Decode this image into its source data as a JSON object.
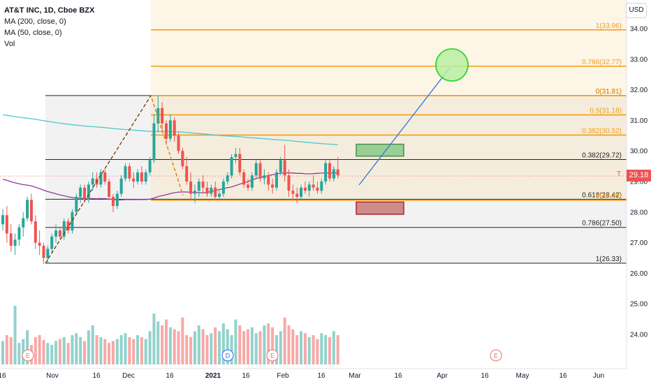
{
  "header": {
    "symbol_line": "AT&T INC, 1D, Cboe BZX",
    "indicators": [
      "MA (200, close, 0)",
      "MA (50, close, 0)",
      "Vol"
    ],
    "currency_button": "USD"
  },
  "last_price": {
    "value": "29.18",
    "symbol_tag": "T",
    "color": "#ef5350"
  },
  "colors": {
    "up": "#26a69a",
    "down": "#ef5350",
    "fib": "#f39c12",
    "ma200": "#4ec8cc",
    "ma50": "#8e3a9a",
    "projection": "#3b7dd8",
    "target": "#00d000"
  },
  "chart_data": {
    "type": "candlestick",
    "y_axis": {
      "min": 23.2,
      "max": 34.9,
      "ticks": [
        "34.00",
        "33.00",
        "32.00",
        "31.00",
        "30.00",
        "29.00",
        "28.00",
        "27.00",
        "26.00",
        "25.00",
        "24.00"
      ]
    },
    "x_axis": {
      "ticks": [
        {
          "label": "16",
          "x": 3
        },
        {
          "label": "Nov",
          "x": 75
        },
        {
          "label": "16",
          "x": 138
        },
        {
          "label": "Dec",
          "x": 184
        },
        {
          "label": "16",
          "x": 243
        },
        {
          "label": "2021",
          "x": 305
        },
        {
          "label": "16",
          "x": 352
        },
        {
          "label": "Feb",
          "x": 405
        },
        {
          "label": "16",
          "x": 460
        },
        {
          "label": "Mar",
          "x": 508
        },
        {
          "label": "16",
          "x": 570
        },
        {
          "label": "Apr",
          "x": 633
        },
        {
          "label": "16",
          "x": 694
        },
        {
          "label": "May",
          "x": 748
        },
        {
          "label": "16",
          "x": 806
        },
        {
          "label": "Jun",
          "x": 857
        }
      ]
    },
    "fib_retracement_1": {
      "levels": [
        {
          "label": "1(33.96)",
          "value": 33.96
        },
        {
          "label": "0.786(32.77)",
          "value": 32.77
        },
        {
          "label": "0(31.81)",
          "value": 31.81
        },
        {
          "label": "0.5(31.18)",
          "value": 31.18
        },
        {
          "label": "0.382(30.52)",
          "value": 30.52
        },
        {
          "label": "0(28.39)",
          "value": 28.39
        }
      ]
    },
    "fib_retracement_2": {
      "levels": [
        {
          "label": "0(31.81)",
          "value": 31.81
        },
        {
          "label": "0.382(29.72)",
          "value": 29.72
        },
        {
          "label": "0.618(28.42)",
          "value": 28.42
        },
        {
          "label": "0.786(27.50)",
          "value": 27.5
        },
        {
          "label": "1(26.33)",
          "value": 26.33
        }
      ]
    },
    "events": [
      {
        "label": "E",
        "x": 40
      },
      {
        "label": "D",
        "x": 326
      },
      {
        "label": "E",
        "x": 390
      },
      {
        "label": "E",
        "x": 710
      }
    ],
    "candles": [
      [
        27.6,
        28.1,
        27.4,
        27.9
      ],
      [
        27.9,
        28.2,
        27.0,
        27.3
      ],
      [
        27.3,
        27.6,
        26.7,
        26.9
      ],
      [
        26.9,
        27.3,
        26.6,
        27.1
      ],
      [
        27.1,
        27.6,
        26.9,
        27.5
      ],
      [
        27.5,
        28.0,
        27.2,
        27.8
      ],
      [
        27.8,
        28.5,
        27.7,
        28.4
      ],
      [
        28.4,
        28.6,
        27.6,
        27.7
      ],
      [
        27.7,
        27.9,
        26.8,
        27.0
      ],
      [
        27.0,
        27.4,
        26.6,
        26.9
      ],
      [
        26.9,
        27.0,
        26.3,
        26.5
      ],
      [
        26.5,
        26.9,
        26.3,
        26.8
      ],
      [
        26.8,
        27.3,
        26.7,
        27.2
      ],
      [
        27.2,
        27.6,
        27.0,
        27.4
      ],
      [
        27.4,
        27.5,
        27.1,
        27.2
      ],
      [
        27.2,
        27.8,
        27.1,
        27.7
      ],
      [
        27.7,
        27.8,
        27.3,
        27.4
      ],
      [
        27.4,
        28.1,
        27.3,
        28.0
      ],
      [
        28.0,
        28.6,
        27.9,
        28.5
      ],
      [
        28.5,
        28.9,
        28.3,
        28.8
      ],
      [
        28.8,
        28.9,
        28.3,
        28.4
      ],
      [
        28.4,
        29.0,
        28.3,
        28.9
      ],
      [
        28.9,
        29.3,
        28.7,
        29.1
      ],
      [
        29.1,
        29.3,
        28.8,
        28.9
      ],
      [
        28.9,
        29.4,
        28.8,
        29.3
      ],
      [
        29.3,
        29.4,
        28.9,
        29.0
      ],
      [
        29.0,
        29.1,
        28.4,
        28.5
      ],
      [
        28.5,
        28.6,
        28.0,
        28.2
      ],
      [
        28.2,
        28.7,
        28.1,
        28.6
      ],
      [
        28.6,
        29.2,
        28.5,
        29.1
      ],
      [
        29.1,
        29.6,
        29.0,
        29.5
      ],
      [
        29.5,
        29.6,
        29.0,
        29.1
      ],
      [
        29.1,
        29.3,
        28.8,
        29.0
      ],
      [
        29.0,
        29.4,
        28.9,
        29.3
      ],
      [
        29.3,
        29.5,
        28.9,
        29.0
      ],
      [
        29.0,
        29.4,
        28.9,
        29.3
      ],
      [
        29.3,
        29.8,
        29.2,
        29.7
      ],
      [
        29.7,
        31.2,
        29.6,
        30.9
      ],
      [
        30.9,
        31.8,
        30.6,
        31.4
      ],
      [
        31.4,
        31.6,
        30.6,
        30.9
      ],
      [
        30.9,
        31.0,
        30.2,
        30.4
      ],
      [
        30.4,
        31.2,
        30.3,
        31.0
      ],
      [
        31.0,
        31.1,
        30.3,
        30.5
      ],
      [
        30.5,
        30.6,
        29.9,
        30.0
      ],
      [
        30.0,
        30.1,
        29.4,
        29.5
      ],
      [
        29.5,
        29.8,
        28.9,
        29.0
      ],
      [
        29.0,
        29.3,
        28.4,
        28.6
      ],
      [
        28.6,
        28.9,
        28.3,
        28.7
      ],
      [
        28.7,
        29.1,
        28.5,
        29.0
      ],
      [
        29.0,
        29.2,
        28.6,
        28.8
      ],
      [
        28.8,
        29.0,
        28.5,
        28.6
      ],
      [
        28.6,
        28.9,
        28.5,
        28.8
      ],
      [
        28.8,
        29.0,
        28.4,
        28.5
      ],
      [
        28.5,
        28.7,
        28.4,
        28.6
      ],
      [
        28.6,
        29.1,
        28.5,
        29.0
      ],
      [
        29.0,
        29.3,
        28.9,
        29.2
      ],
      [
        29.2,
        29.9,
        29.1,
        29.8
      ],
      [
        29.8,
        30.1,
        29.6,
        29.9
      ],
      [
        29.9,
        30.1,
        29.2,
        29.3
      ],
      [
        29.3,
        29.4,
        28.8,
        28.9
      ],
      [
        28.9,
        29.1,
        28.7,
        28.8
      ],
      [
        28.8,
        29.3,
        28.7,
        29.2
      ],
      [
        29.2,
        29.7,
        29.1,
        29.6
      ],
      [
        29.6,
        29.7,
        29.0,
        29.1
      ],
      [
        29.1,
        29.4,
        28.9,
        29.2
      ],
      [
        29.2,
        29.3,
        28.7,
        28.9
      ],
      [
        28.9,
        29.1,
        28.6,
        28.8
      ],
      [
        28.8,
        29.4,
        28.7,
        29.3
      ],
      [
        29.3,
        29.8,
        29.2,
        29.7
      ],
      [
        29.7,
        30.2,
        29.0,
        29.2
      ],
      [
        29.2,
        29.4,
        28.5,
        28.7
      ],
      [
        28.7,
        28.9,
        28.4,
        28.6
      ],
      [
        28.6,
        28.8,
        28.3,
        28.5
      ],
      [
        28.5,
        28.9,
        28.4,
        28.8
      ],
      [
        28.8,
        29.0,
        28.6,
        28.7
      ],
      [
        28.7,
        29.0,
        28.5,
        28.9
      ],
      [
        28.9,
        29.2,
        28.7,
        28.8
      ],
      [
        28.8,
        29.0,
        28.6,
        28.7
      ],
      [
        28.7,
        29.1,
        28.6,
        29.0
      ],
      [
        29.0,
        29.7,
        28.9,
        29.6
      ],
      [
        29.6,
        29.7,
        29.0,
        29.1
      ],
      [
        29.1,
        29.5,
        29.0,
        29.4
      ],
      [
        29.4,
        29.8,
        29.1,
        29.2
      ]
    ],
    "volume_scale_max": 100,
    "volumes": [
      24,
      30,
      28,
      60,
      22,
      26,
      35,
      20,
      28,
      30,
      25,
      22,
      20,
      24,
      26,
      28,
      22,
      30,
      32,
      28,
      24,
      35,
      40,
      30,
      28,
      26,
      22,
      24,
      26,
      30,
      32,
      28,
      26,
      30,
      28,
      26,
      34,
      52,
      44,
      40,
      46,
      38,
      36,
      34,
      48,
      30,
      28,
      34,
      40,
      36,
      30,
      32,
      38,
      34,
      42,
      36,
      30,
      46,
      40,
      34,
      36,
      38,
      32,
      34,
      40,
      42,
      38,
      30,
      34,
      48,
      40,
      36,
      30,
      34,
      32,
      28,
      30,
      26,
      32,
      30,
      28,
      34,
      30
    ]
  }
}
